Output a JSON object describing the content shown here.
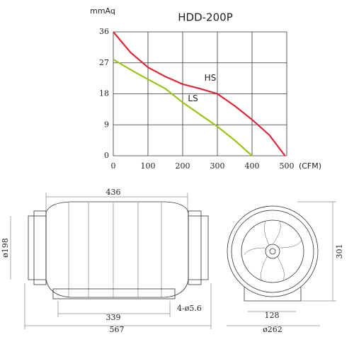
{
  "chart_data": {
    "type": "line",
    "title": "HDD-200P",
    "y_label": "mmAq",
    "x_label": "(CFM)",
    "xlim": [
      0,
      500
    ],
    "ylim": [
      0,
      36
    ],
    "xticks": [
      0,
      100,
      200,
      300,
      400,
      500
    ],
    "yticks": [
      0,
      9,
      18,
      27,
      36
    ],
    "grid": true,
    "series": [
      {
        "name": "HS",
        "color": "#d8283a",
        "x": [
          0,
          50,
          100,
          150,
          200,
          250,
          300,
          350,
          400,
          450,
          495
        ],
        "values": [
          36,
          30,
          25.7,
          23,
          20.8,
          19.5,
          18,
          14.5,
          10.5,
          6,
          0
        ]
      },
      {
        "name": "LS",
        "color": "#9ac31c",
        "x": [
          0,
          50,
          100,
          150,
          200,
          250,
          300,
          350,
          400
        ],
        "values": [
          28,
          25,
          22.2,
          19.5,
          15.5,
          12,
          8.5,
          4.5,
          0
        ]
      }
    ]
  },
  "drawings": {
    "side_view": {
      "length": "436",
      "diameter": "ø198",
      "hole_spacing": "339",
      "holes": "4-ø5.6",
      "overall_length": "567"
    },
    "front_view": {
      "height": "301",
      "diameter": "ø262",
      "base_width": "128"
    }
  }
}
